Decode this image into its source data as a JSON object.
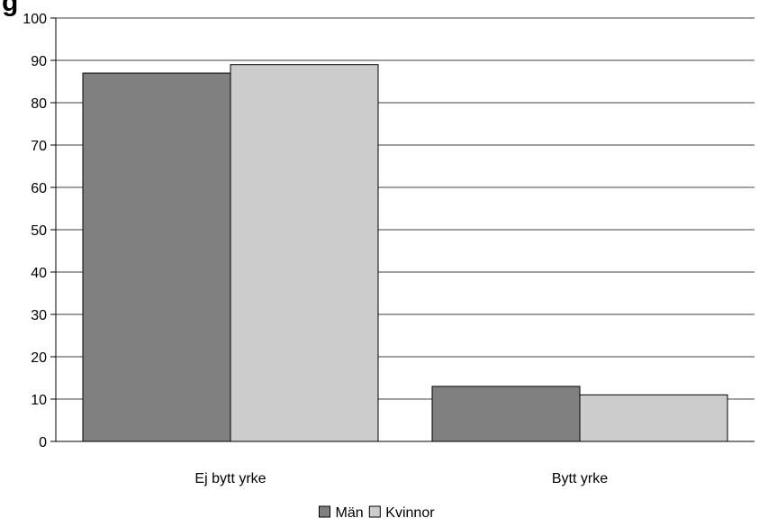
{
  "chart_data": {
    "type": "bar",
    "title": "g",
    "categories": [
      "Ej bytt yrke",
      "Bytt yrke"
    ],
    "series": [
      {
        "name": "Män",
        "values": [
          87,
          13
        ],
        "color": "#808080"
      },
      {
        "name": "Kvinnor",
        "values": [
          89,
          11
        ],
        "color": "#cccccc"
      }
    ],
    "ylim": [
      0,
      100
    ],
    "yticks": [
      0,
      10,
      20,
      30,
      40,
      50,
      60,
      70,
      80,
      90,
      100
    ],
    "grid": true,
    "legend": "bottom",
    "xlabel": "",
    "ylabel": ""
  }
}
